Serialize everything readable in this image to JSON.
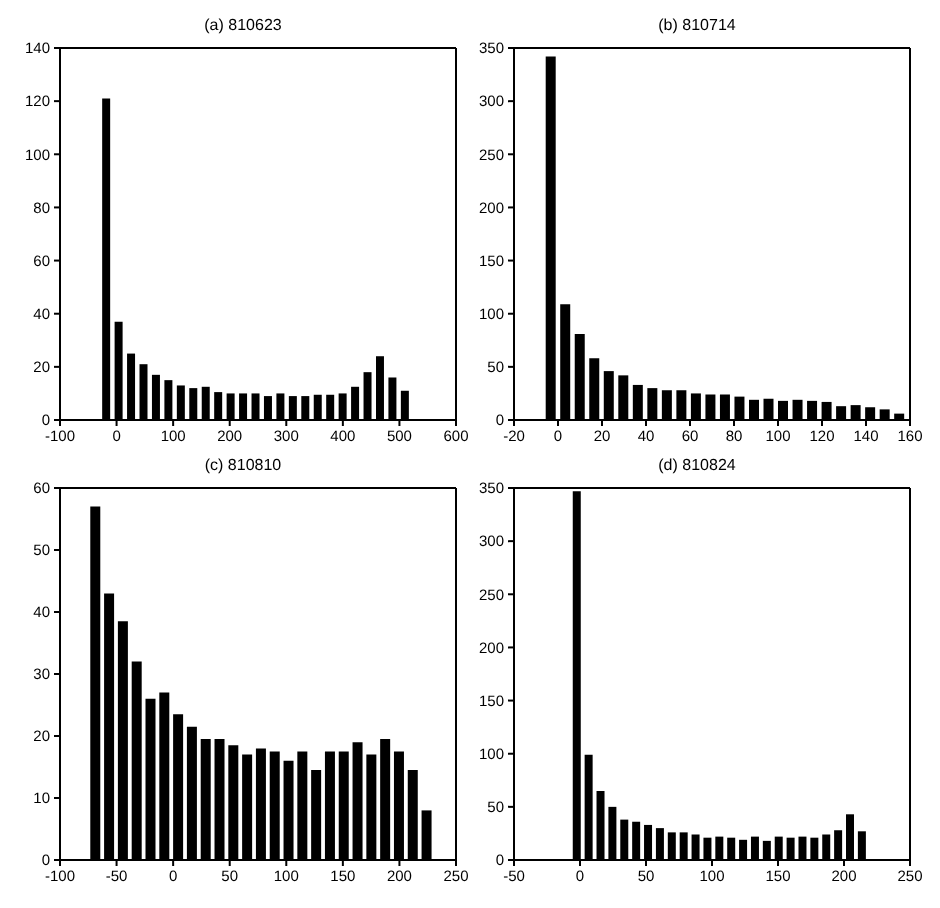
{
  "chart_data": [
    {
      "type": "histogram",
      "title": "(a)  810623",
      "color": "#000000",
      "grid": false,
      "xlim": [
        -100,
        600
      ],
      "xticks": [
        -100,
        0,
        100,
        200,
        300,
        400,
        500,
        600
      ],
      "ylim": [
        0,
        140
      ],
      "yticks": [
        0,
        20,
        40,
        60,
        80,
        100,
        120,
        140
      ],
      "bins": [
        -29,
        -7,
        15,
        37,
        59,
        81,
        103,
        125,
        147,
        169,
        191,
        213,
        235,
        257,
        279,
        301,
        323,
        345,
        367,
        389,
        411,
        433,
        455,
        477,
        499,
        521
      ],
      "values": [
        121,
        37,
        25,
        21,
        17,
        15,
        13,
        12,
        12.5,
        10.5,
        10,
        10,
        10,
        9,
        10,
        9,
        9,
        9.5,
        9.5,
        10,
        12.5,
        18,
        24,
        16,
        11
      ]
    },
    {
      "type": "histogram",
      "title": "(b)  810714",
      "color": "#000000",
      "grid": false,
      "xlim": [
        -20,
        160
      ],
      "xticks": [
        -20,
        0,
        20,
        40,
        60,
        80,
        100,
        120,
        140,
        160
      ],
      "ylim": [
        0,
        350
      ],
      "yticks": [
        0,
        50,
        100,
        150,
        200,
        250,
        300,
        350
      ],
      "bins": [
        -6.5,
        0.1,
        6.7,
        13.3,
        19.9,
        26.5,
        33.1,
        39.7,
        46.3,
        52.9,
        59.5,
        66.1,
        72.7,
        79.3,
        85.9,
        92.5,
        99.1,
        105.7,
        112.3,
        118.9,
        125.5,
        132.1,
        138.7,
        145.3,
        151.9,
        158.5
      ],
      "values": [
        342,
        109,
        81,
        58,
        46,
        42,
        33,
        30,
        28,
        28,
        25,
        24,
        24,
        22,
        19,
        20,
        18,
        19,
        18,
        17,
        13,
        14,
        12,
        10,
        6
      ]
    },
    {
      "type": "histogram",
      "title": "(c)  810810",
      "color": "#000000",
      "grid": false,
      "xlim": [
        -100,
        250
      ],
      "xticks": [
        -100,
        -50,
        0,
        50,
        100,
        150,
        200,
        250
      ],
      "ylim": [
        0,
        60
      ],
      "yticks": [
        0,
        10,
        20,
        30,
        40,
        50,
        60
      ],
      "bins": [
        -75,
        -62.8,
        -50.6,
        -38.4,
        -26.2,
        -14,
        -1.8,
        10.4,
        22.6,
        34.8,
        47,
        59.2,
        71.4,
        83.6,
        95.8,
        108,
        120.2,
        132.4,
        144.6,
        156.8,
        169,
        181.2,
        193.4,
        205.6,
        217.8,
        230
      ],
      "values": [
        57,
        43,
        38.5,
        32,
        26,
        27,
        23.5,
        21.5,
        19.5,
        19.5,
        18.5,
        17,
        18,
        17.5,
        16,
        17.5,
        14.5,
        17.5,
        17.5,
        19,
        17,
        19.5,
        17.5,
        14.5,
        8
      ]
    },
    {
      "type": "histogram",
      "title": "(d)  810824",
      "color": "#000000",
      "grid": false,
      "xlim": [
        -50,
        250
      ],
      "xticks": [
        -50,
        0,
        50,
        100,
        150,
        200,
        250
      ],
      "ylim": [
        0,
        350
      ],
      "yticks": [
        0,
        50,
        100,
        150,
        200,
        250,
        300,
        350
      ],
      "bins": [
        -7,
        2,
        11,
        20,
        29,
        38,
        47,
        56,
        65,
        74,
        83,
        92,
        101,
        110,
        119,
        128,
        137,
        146,
        155,
        164,
        173,
        182,
        191,
        200,
        209,
        218
      ],
      "values": [
        347,
        99,
        65,
        50,
        38,
        36,
        33,
        30,
        26,
        26,
        24,
        21,
        22,
        21,
        19,
        22,
        18,
        22,
        21,
        22,
        21,
        24,
        28,
        43,
        27
      ]
    }
  ]
}
